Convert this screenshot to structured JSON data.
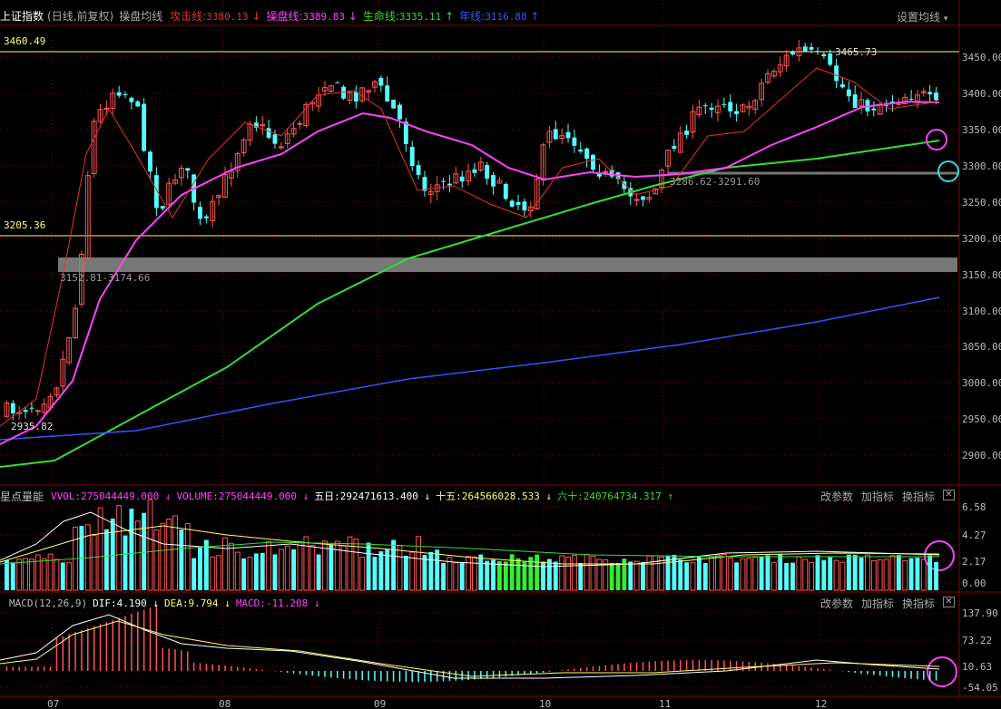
{
  "header": {
    "title": "上证指数",
    "subtitle": "(日线,前复权)",
    "indicator_name": "操盘均线",
    "lines": [
      {
        "label": "攻击线",
        "value": "3380.13",
        "arrow": "↓",
        "color": "#e8332b"
      },
      {
        "label": "操盘线",
        "value": "3389.83",
        "arrow": "↓",
        "color": "#ff44ff"
      },
      {
        "label": "生命线",
        "value": "3335.11",
        "arrow": "↑",
        "color": "#33dd33"
      },
      {
        "label": "年线",
        "value": "3116.88",
        "arrow": "↑",
        "color": "#3355ff"
      }
    ],
    "settings_label": "设置均线",
    "settings_arrow": "▾"
  },
  "main_chart": {
    "high_line_label": "3460.49",
    "low_line_label": "3205.36",
    "peak_label": "3465.73",
    "trough_label": "2935.82",
    "gap_upper_label": "3286.62-3291.60",
    "gap_lower_label": "3152.81-3174.66",
    "y_axis": [
      "3450.00",
      "3400.00",
      "3350.00",
      "3300.00",
      "3250.00",
      "3200.00",
      "3150.00",
      "3100.00",
      "3050.00",
      "3000.00",
      "2950.00",
      "2900.00"
    ]
  },
  "volume_panel": {
    "name": "星点量能",
    "items": [
      {
        "label": "VVOL:275044449.000",
        "arrow": "↓",
        "color": "#ff44ff"
      },
      {
        "label": "VOLUME:275044449.000",
        "arrow": "↓",
        "color": "#ff44ff"
      },
      {
        "label": "五日:292471613.400",
        "arrow": "↓",
        "color": "#ffffff"
      },
      {
        "label": "十五:264566028.533",
        "arrow": "↓",
        "color": "#ffff66"
      },
      {
        "label": "六十:240764734.317",
        "arrow": "↑",
        "color": "#33dd33"
      }
    ],
    "y_axis": [
      "6.58",
      "4.27",
      "2.17",
      "0.00"
    ],
    "buttons": {
      "change_params": "改参数",
      "add_indicator": "加指标",
      "switch_indicator": "换指标",
      "close": "✕"
    }
  },
  "macd_panel": {
    "name": "MACD(12,26,9)",
    "items": [
      {
        "label": "DIF:4.190",
        "arrow": "↓",
        "color": "#ffffff"
      },
      {
        "label": "DEA:9.794",
        "arrow": "↓",
        "color": "#ffff66"
      },
      {
        "label": "MACD:-11.208",
        "arrow": "↓",
        "color": "#ff44ff"
      }
    ],
    "y_axis": [
      "137.90",
      "73.22",
      "10.63",
      "-54.05"
    ],
    "buttons": {
      "change_params": "改参数",
      "add_indicator": "加指标",
      "switch_indicator": "换指标",
      "close": "✕"
    }
  },
  "date_axis": [
    "07",
    "08",
    "09",
    "10",
    "11",
    "12"
  ],
  "colors": {
    "up": "#ff5555",
    "down": "#55ffff",
    "grid": "#8b0000",
    "background": "#000000"
  }
}
